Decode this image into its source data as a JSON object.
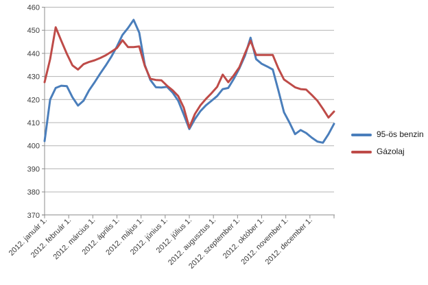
{
  "chart_data": {
    "type": "line",
    "title": "",
    "points_per_series": 53,
    "x_axis": {
      "categories": [
        "2012. január 1.",
        "2012. február 1.",
        "2012. március 1.",
        "2012. április 1.",
        "2012. május 1.",
        "2012. június 1.",
        "2012. július 1.",
        "2012. augusztus 1.",
        "2012. szeptember 1.",
        "2012. október 1.",
        "2012. november 1.",
        "2012. december 1."
      ],
      "tick_label_rotation_deg": -45
    },
    "y_axis": {
      "min": 370,
      "max": 460,
      "tick_step": 10,
      "tick_labels": [
        "370",
        "380",
        "390",
        "400",
        "410",
        "420",
        "430",
        "440",
        "450",
        "460"
      ]
    },
    "grid": "horizontal",
    "legend": {
      "position": "right"
    },
    "series": [
      {
        "name": "95-ös benzin",
        "color": "#4A7EBB",
        "values": [
          402,
          420,
          425,
          426,
          425.8,
          421,
          417.4,
          419.5,
          424,
          427.5,
          431.3,
          434.8,
          438.6,
          443,
          448,
          451,
          454.5,
          449,
          435,
          428.5,
          425.3,
          425.2,
          425.5,
          423,
          419.5,
          413.5,
          407.2,
          411.5,
          415,
          417.5,
          419.5,
          421.5,
          424.5,
          425,
          429,
          433.5,
          439,
          446.8,
          437.5,
          435.5,
          434.3,
          433,
          424,
          414.5,
          410,
          405,
          406.8,
          405.5,
          403.5,
          401.8,
          401.3,
          405,
          409.5
        ]
      },
      {
        "name": "Gázolaj",
        "color": "#BE4B48",
        "values": [
          427.5,
          437.5,
          451.3,
          445.5,
          439.8,
          434.8,
          433,
          435.3,
          436.3,
          437,
          438,
          439.2,
          440.7,
          442.3,
          445.7,
          442.7,
          442.7,
          443,
          434.6,
          429,
          428.5,
          428.3,
          426,
          424,
          421.5,
          416.5,
          407.8,
          413.7,
          417.5,
          420.3,
          422.8,
          425.5,
          430.8,
          427.5,
          430.5,
          434,
          440,
          445.5,
          439.3,
          439.3,
          439.3,
          439.3,
          433.5,
          428.7,
          427,
          425.3,
          424.5,
          424.3,
          422,
          419.5,
          416,
          412.2,
          414.8
        ]
      }
    ],
    "colors": {
      "gridline": "#b3b3b3",
      "axis": "#8c8c8c",
      "tick": "#8c8c8c",
      "label_text": "#3a3a3a",
      "background": "#ffffff"
    }
  }
}
